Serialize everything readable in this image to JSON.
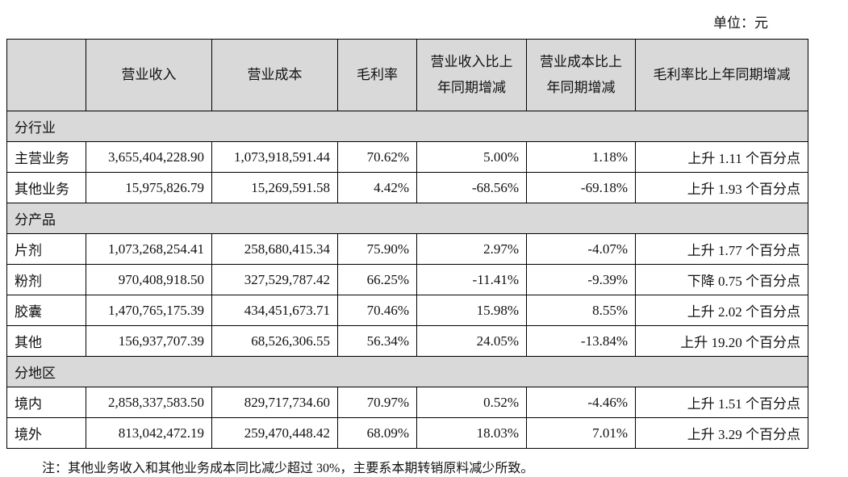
{
  "unit_label": "单位：元",
  "headers": {
    "category": "",
    "revenue": "营业收入",
    "cost": "营业成本",
    "gross_margin": "毛利率",
    "revenue_yoy_line1": "营业收入比上",
    "revenue_yoy_line2": "年同期增减",
    "cost_yoy_line1": "营业成本比上",
    "cost_yoy_line2": "年同期增减",
    "margin_yoy": "毛利率比上年同期增减"
  },
  "sections": [
    {
      "title": "分行业",
      "rows": [
        {
          "name": "主营业务",
          "revenue": "3,655,404,228.90",
          "cost": "1,073,918,591.44",
          "margin": "70.62%",
          "rev_yoy": "5.00%",
          "cost_yoy": "1.18%",
          "margin_yoy": "上升 1.11 个百分点"
        },
        {
          "name": "其他业务",
          "revenue": "15,975,826.79",
          "cost": "15,269,591.58",
          "margin": "4.42%",
          "rev_yoy": "-68.56%",
          "cost_yoy": "-69.18%",
          "margin_yoy": "上升 1.93 个百分点"
        }
      ]
    },
    {
      "title": "分产品",
      "rows": [
        {
          "name": "片剂",
          "revenue": "1,073,268,254.41",
          "cost": "258,680,415.34",
          "margin": "75.90%",
          "rev_yoy": "2.97%",
          "cost_yoy": "-4.07%",
          "margin_yoy": "上升 1.77 个百分点"
        },
        {
          "name": "粉剂",
          "revenue": "970,408,918.50",
          "cost": "327,529,787.42",
          "margin": "66.25%",
          "rev_yoy": "-11.41%",
          "cost_yoy": "-9.39%",
          "margin_yoy": "下降 0.75 个百分点"
        },
        {
          "name": "胶囊",
          "revenue": "1,470,765,175.39",
          "cost": "434,451,673.71",
          "margin": "70.46%",
          "rev_yoy": "15.98%",
          "cost_yoy": "8.55%",
          "margin_yoy": "上升 2.02 个百分点"
        },
        {
          "name": "其他",
          "revenue": "156,937,707.39",
          "cost": "68,526,306.55",
          "margin": "56.34%",
          "rev_yoy": "24.05%",
          "cost_yoy": "-13.84%",
          "margin_yoy": "上升 19.20 个百分点"
        }
      ]
    },
    {
      "title": "分地区",
      "rows": [
        {
          "name": "境内",
          "revenue": "2,858,337,583.50",
          "cost": "829,717,734.60",
          "margin": "70.97%",
          "rev_yoy": "0.52%",
          "cost_yoy": "-4.46%",
          "margin_yoy": "上升 1.51 个百分点"
        },
        {
          "name": "境外",
          "revenue": "813,042,472.19",
          "cost": "259,470,448.42",
          "margin": "68.09%",
          "rev_yoy": "18.03%",
          "cost_yoy": "7.01%",
          "margin_yoy": "上升 3.29 个百分点"
        }
      ]
    }
  ],
  "footnote": "注：其他业务收入和其他业务成本同比减少超过 30%，主要系本期转销原料减少所致。"
}
